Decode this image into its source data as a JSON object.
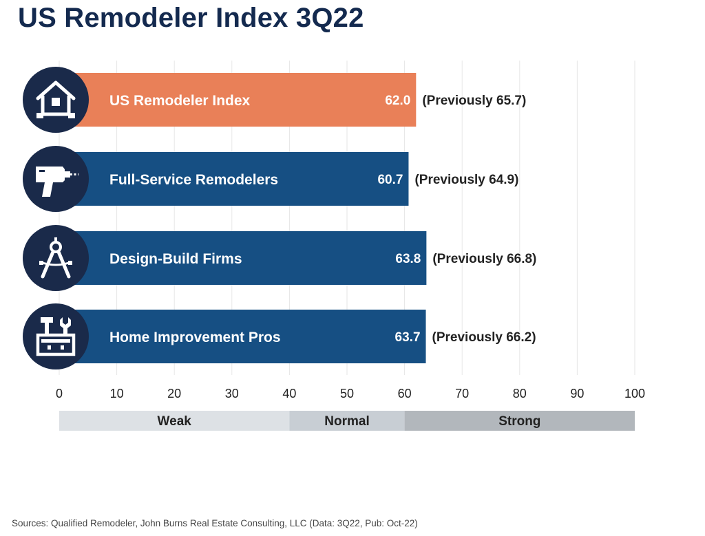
{
  "title": "US Remodeler Index 3Q22",
  "source": "Sources: Qualified Remodeler, John Burns Real Estate Consulting, LLC (Data: 3Q22, Pub: Oct-22)",
  "colors": {
    "highlight": "#e98058",
    "series": "#164f83",
    "icon_circle": "#1a2a4a",
    "weak_band": "#dde1e5",
    "normal_band": "#c8ced4",
    "strong_band": "#b2b7bc",
    "grid": "#e6e6e6"
  },
  "chart_data": {
    "type": "bar",
    "orientation": "horizontal",
    "xlim": [
      0,
      100
    ],
    "ticks": [
      0,
      10,
      20,
      30,
      40,
      50,
      60,
      70,
      80,
      90,
      100
    ],
    "grid": true,
    "items": [
      {
        "label": "US Remodeler Index",
        "value": 62.0,
        "value_text": "62.0",
        "previous_text": "(Previously 65.7)",
        "previous": 65.7,
        "icon": "house-icon",
        "highlight": true
      },
      {
        "label": "Full-Service Remodelers",
        "value": 60.7,
        "value_text": "60.7",
        "previous_text": "(Previously 64.9)",
        "previous": 64.9,
        "icon": "drill-icon",
        "highlight": false
      },
      {
        "label": "Design-Build Firms",
        "value": 63.8,
        "value_text": "63.8",
        "previous_text": "(Previously 66.8)",
        "previous": 66.8,
        "icon": "compass-icon",
        "highlight": false
      },
      {
        "label": "Home Improvement Pros",
        "value": 63.7,
        "value_text": "63.7",
        "previous_text": "(Previously 66.2)",
        "previous": 66.2,
        "icon": "toolbox-icon",
        "highlight": false
      }
    ],
    "bands": [
      {
        "label": "Weak",
        "from": 0,
        "to": 40
      },
      {
        "label": "Normal",
        "from": 40,
        "to": 60
      },
      {
        "label": "Strong",
        "from": 60,
        "to": 100
      }
    ]
  }
}
